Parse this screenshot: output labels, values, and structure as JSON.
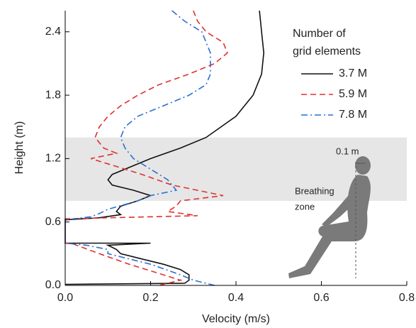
{
  "chart_data": {
    "type": "line",
    "x_label": "Velocity (m/s)",
    "y_label": "Height (m)",
    "legend_title": [
      "Number of",
      "grid elements"
    ],
    "legend_position": "upper right",
    "annotations": [
      "0.1 m",
      "Breathing",
      "zone"
    ],
    "shaded_region": [
      0.8,
      1.4
    ],
    "xlim": [
      0,
      0.8
    ],
    "ylim": [
      0,
      2.6
    ],
    "xticks": [
      {
        "value": 0,
        "label": "0.0"
      },
      0.2,
      0.4,
      0.6,
      0.8
    ],
    "yticks": [
      {
        "value": 0,
        "label": "0.0"
      },
      0.6,
      1.2,
      1.8,
      2.4
    ],
    "series": [
      {
        "name": "3.7 M",
        "color": "#111111",
        "dash": "solid",
        "x": [
          0.455,
          0.46,
          0.465,
          0.46,
          0.44,
          0.4,
          0.33,
          0.27,
          0.2,
          0.14,
          0.11,
          0.1,
          0.11,
          0.16,
          0.2,
          0.17,
          0.13,
          0.12,
          0.13,
          0.08,
          0.0,
          0.0,
          0.2,
          0.1,
          0.12,
          0.13,
          0.18,
          0.23,
          0.27,
          0.29,
          0.29,
          0.28,
          0.0
        ],
        "y": [
          2.6,
          2.4,
          2.2,
          2.0,
          1.8,
          1.6,
          1.4,
          1.3,
          1.2,
          1.1,
          1.05,
          1.0,
          0.95,
          0.9,
          0.85,
          0.8,
          0.75,
          0.7,
          0.67,
          0.64,
          0.62,
          0.4,
          0.4,
          0.38,
          0.34,
          0.3,
          0.25,
          0.2,
          0.15,
          0.1,
          0.05,
          0.02,
          0.01
        ]
      },
      {
        "name": "5.9 M",
        "color": "#e03030",
        "dash": "dashed",
        "x": [
          0.3,
          0.31,
          0.33,
          0.37,
          0.38,
          0.35,
          0.29,
          0.22,
          0.17,
          0.13,
          0.1,
          0.08,
          0.07,
          0.09,
          0.12,
          0.06,
          0.1,
          0.18,
          0.25,
          0.37,
          0.27,
          0.26,
          0.24,
          0.31,
          0.0,
          0.0,
          0.02,
          0.08,
          0.15,
          0.23,
          0.27,
          0.22
        ],
        "y": [
          2.6,
          2.5,
          2.4,
          2.3,
          2.2,
          2.1,
          2.0,
          1.9,
          1.8,
          1.7,
          1.6,
          1.5,
          1.4,
          1.3,
          1.25,
          1.2,
          1.15,
          1.05,
          0.95,
          0.85,
          0.8,
          0.75,
          0.7,
          0.66,
          0.63,
          0.4,
          0.39,
          0.3,
          0.2,
          0.1,
          0.05,
          0.0
        ]
      },
      {
        "name": "7.8 M",
        "color": "#2b6fd1",
        "dash": "dashdot",
        "x": [
          0.25,
          0.28,
          0.32,
          0.34,
          0.34,
          0.33,
          0.29,
          0.23,
          0.17,
          0.14,
          0.13,
          0.14,
          0.16,
          0.2,
          0.24,
          0.26,
          0.2,
          0.17,
          0.1,
          0.08,
          0.06,
          0.0,
          0.0,
          0.05,
          0.1,
          0.1,
          0.2,
          0.27,
          0.3,
          0.35
        ],
        "y": [
          2.6,
          2.5,
          2.4,
          2.2,
          2.0,
          1.9,
          1.8,
          1.7,
          1.6,
          1.5,
          1.4,
          1.3,
          1.2,
          1.1,
          1.0,
          0.9,
          0.85,
          0.8,
          0.72,
          0.68,
          0.65,
          0.62,
          0.4,
          0.38,
          0.34,
          0.3,
          0.2,
          0.1,
          0.05,
          0.0
        ]
      }
    ]
  }
}
